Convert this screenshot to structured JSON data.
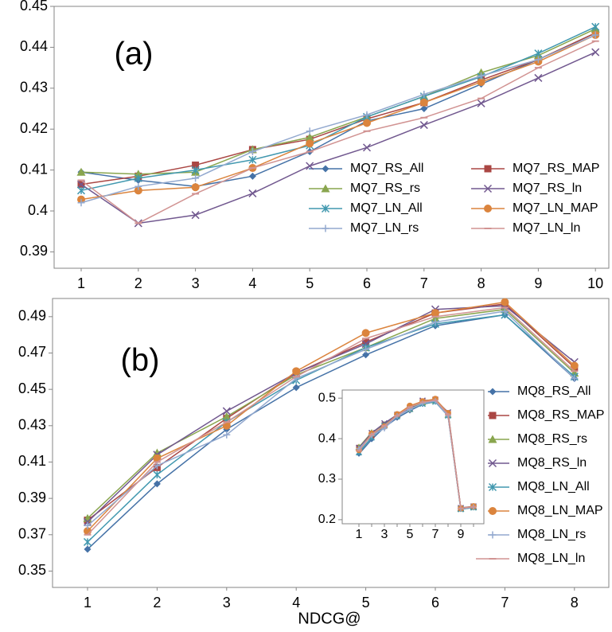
{
  "chart_data": [
    {
      "type": "line",
      "annotation": "(a)",
      "categories": [
        "1",
        "2",
        "3",
        "4",
        "5",
        "6",
        "7",
        "8",
        "9",
        "10"
      ],
      "ylim": [
        0.386,
        0.45
      ],
      "yticks": [
        0.39,
        0.4,
        0.41,
        0.42,
        0.43,
        0.44,
        0.45
      ],
      "series": [
        {
          "name": "MQ7_RS_All",
          "color": "#4572a7",
          "marker": "diamond",
          "values": [
            0.4095,
            0.4075,
            0.406,
            0.4085,
            0.4145,
            0.422,
            0.425,
            0.431,
            0.437,
            0.4435
          ]
        },
        {
          "name": "MQ7_RS_MAP",
          "color": "#aa4643",
          "marker": "square",
          "values": [
            0.4065,
            0.4085,
            0.4112,
            0.415,
            0.4175,
            0.4225,
            0.4265,
            0.432,
            0.437,
            0.4435
          ]
        },
        {
          "name": "MQ7_RS_rs",
          "color": "#89a54e",
          "marker": "triangle",
          "values": [
            0.4095,
            0.409,
            0.4095,
            0.415,
            0.418,
            0.423,
            0.428,
            0.4338,
            0.438,
            0.4445
          ]
        },
        {
          "name": "MQ7_RS_ln",
          "color": "#71588f",
          "marker": "x",
          "values": [
            0.4065,
            0.397,
            0.399,
            0.4043,
            0.411,
            0.4155,
            0.421,
            0.4263,
            0.4325,
            0.4388
          ]
        },
        {
          "name": "MQ7_LN_All",
          "color": "#4198af",
          "marker": "asterisk",
          "values": [
            0.405,
            0.408,
            0.41,
            0.4125,
            0.416,
            0.423,
            0.428,
            0.4328,
            0.4385,
            0.445
          ]
        },
        {
          "name": "MQ7_LN_MAP",
          "color": "#db843d",
          "marker": "circle",
          "values": [
            0.4028,
            0.405,
            0.4058,
            0.4105,
            0.4165,
            0.4215,
            0.4265,
            0.4315,
            0.4365,
            0.443
          ]
        },
        {
          "name": "MQ7_LN_rs",
          "color": "#93a9cf",
          "marker": "plus",
          "values": [
            0.402,
            0.406,
            0.408,
            0.4145,
            0.4195,
            0.4235,
            0.4285,
            0.433,
            0.437,
            0.443
          ]
        },
        {
          "name": "MQ7_LN_ln",
          "color": "#d19392",
          "marker": "dash",
          "values": [
            0.4075,
            0.397,
            0.4042,
            0.4105,
            0.4145,
            0.4195,
            0.4228,
            0.4275,
            0.435,
            0.4415
          ]
        }
      ]
    },
    {
      "type": "line",
      "annotation": "(b)",
      "xlabel": "NDCG@",
      "categories": [
        "1",
        "2",
        "3",
        "4",
        "5",
        "6",
        "7",
        "8"
      ],
      "ylim": [
        0.341,
        0.5
      ],
      "yticks": [
        0.35,
        0.37,
        0.39,
        0.41,
        0.43,
        0.45,
        0.47,
        0.49
      ],
      "series": [
        {
          "name": "MQ8_RS_All",
          "color": "#4572a7",
          "marker": "diamond",
          "values": [
            0.362,
            0.398,
            0.428,
            0.451,
            0.469,
            0.485,
            0.491,
            0.456
          ]
        },
        {
          "name": "MQ8_RS_MAP",
          "color": "#aa4643",
          "marker": "square",
          "values": [
            0.378,
            0.407,
            0.434,
            0.459,
            0.476,
            0.492,
            0.497,
            0.462
          ]
        },
        {
          "name": "MQ8_RS_rs",
          "color": "#89a54e",
          "marker": "triangle",
          "values": [
            0.379,
            0.415,
            0.435,
            0.458,
            0.473,
            0.489,
            0.494,
            0.459
          ]
        },
        {
          "name": "MQ8_RS_ln",
          "color": "#71588f",
          "marker": "x",
          "values": [
            0.377,
            0.414,
            0.438,
            0.459,
            0.475,
            0.494,
            0.496,
            0.465
          ]
        },
        {
          "name": "MQ8_LN_All",
          "color": "#4198af",
          "marker": "asterisk",
          "values": [
            0.366,
            0.403,
            0.432,
            0.455,
            0.473,
            0.486,
            0.491,
            0.457
          ]
        },
        {
          "name": "MQ8_LN_MAP",
          "color": "#db843d",
          "marker": "circle",
          "values": [
            0.372,
            0.412,
            0.43,
            0.46,
            0.481,
            0.492,
            0.498,
            0.463
          ]
        },
        {
          "name": "MQ8_LN_rs",
          "color": "#93a9cf",
          "marker": "plus",
          "values": [
            0.375,
            0.408,
            0.425,
            0.456,
            0.472,
            0.487,
            0.493,
            0.456
          ]
        },
        {
          "name": "MQ8_LN_ln",
          "color": "#d19392",
          "marker": "dash",
          "values": [
            0.37,
            0.41,
            0.432,
            0.457,
            0.478,
            0.49,
            0.495,
            0.46
          ]
        }
      ]
    },
    {
      "type": "line",
      "categories": [
        "1",
        null,
        "3",
        null,
        "5",
        null,
        "7",
        null,
        "9",
        null
      ],
      "ylim": [
        0.19,
        0.52
      ],
      "yticks": [
        0.2,
        0.3,
        0.4,
        0.5
      ],
      "series": [
        {
          "color": "#4572a7",
          "marker": "diamond",
          "values": [
            0.362,
            0.398,
            0.428,
            0.451,
            0.469,
            0.485,
            0.491,
            0.456,
            0.226,
            0.23
          ]
        },
        {
          "color": "#aa4643",
          "marker": "square",
          "values": [
            0.378,
            0.407,
            0.434,
            0.459,
            0.476,
            0.492,
            0.497,
            0.462,
            0.228,
            0.232
          ]
        },
        {
          "color": "#89a54e",
          "marker": "triangle",
          "values": [
            0.379,
            0.415,
            0.435,
            0.458,
            0.473,
            0.489,
            0.494,
            0.459,
            0.227,
            0.231
          ]
        },
        {
          "color": "#71588f",
          "marker": "x",
          "values": [
            0.377,
            0.414,
            0.438,
            0.459,
            0.475,
            0.494,
            0.496,
            0.465,
            0.229,
            0.233
          ]
        },
        {
          "color": "#4198af",
          "marker": "asterisk",
          "values": [
            0.366,
            0.403,
            0.432,
            0.455,
            0.473,
            0.486,
            0.491,
            0.457,
            0.226,
            0.23
          ]
        },
        {
          "color": "#db843d",
          "marker": "circle",
          "values": [
            0.372,
            0.412,
            0.43,
            0.46,
            0.481,
            0.492,
            0.498,
            0.463,
            0.228,
            0.233
          ]
        },
        {
          "color": "#93a9cf",
          "marker": "plus",
          "values": [
            0.375,
            0.408,
            0.425,
            0.456,
            0.472,
            0.487,
            0.493,
            0.456,
            0.227,
            0.231
          ]
        },
        {
          "color": "#d19392",
          "marker": "dash",
          "values": [
            0.37,
            0.41,
            0.432,
            0.457,
            0.478,
            0.49,
            0.495,
            0.46,
            0.228,
            0.232
          ]
        }
      ]
    }
  ]
}
